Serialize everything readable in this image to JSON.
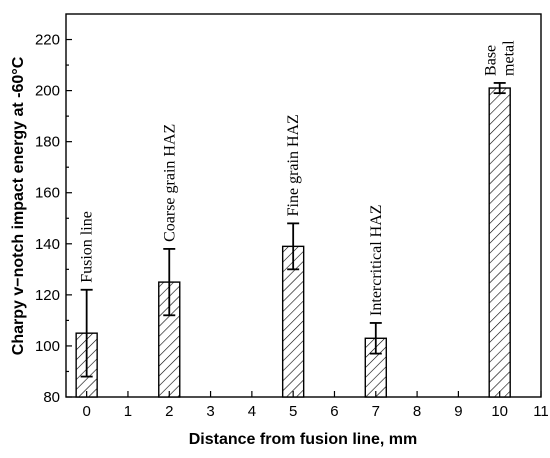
{
  "chart_data": {
    "type": "bar",
    "title": "",
    "xlabel": "Distance from fusion line, mm",
    "ylabel": "Charpy v−notch impact energy at -60°C",
    "xlim": [
      -0.5,
      11
    ],
    "ylim": [
      80,
      230
    ],
    "xticks": [
      0,
      1,
      2,
      3,
      4,
      5,
      6,
      7,
      8,
      9,
      10,
      11
    ],
    "yticks": [
      80,
      100,
      120,
      140,
      160,
      180,
      200,
      220
    ],
    "grid": false,
    "bar_fill": "diagonal-hatch",
    "bars": [
      {
        "x": 0,
        "value": 105,
        "err_low": 88,
        "err_high": 122,
        "label": "Fusion line"
      },
      {
        "x": 2,
        "value": 125,
        "err_low": 112,
        "err_high": 138,
        "label": "Coarse grain HAZ"
      },
      {
        "x": 5,
        "value": 139,
        "err_low": 130,
        "err_high": 148,
        "label": "Fine grain HAZ"
      },
      {
        "x": 7,
        "value": 103,
        "err_low": 97,
        "err_high": 109,
        "label": "Intercritical HAZ"
      },
      {
        "x": 10,
        "value": 201,
        "err_low": 199,
        "err_high": 203,
        "label": "Base metal",
        "label_lines": [
          "Base",
          "metal"
        ]
      }
    ]
  }
}
